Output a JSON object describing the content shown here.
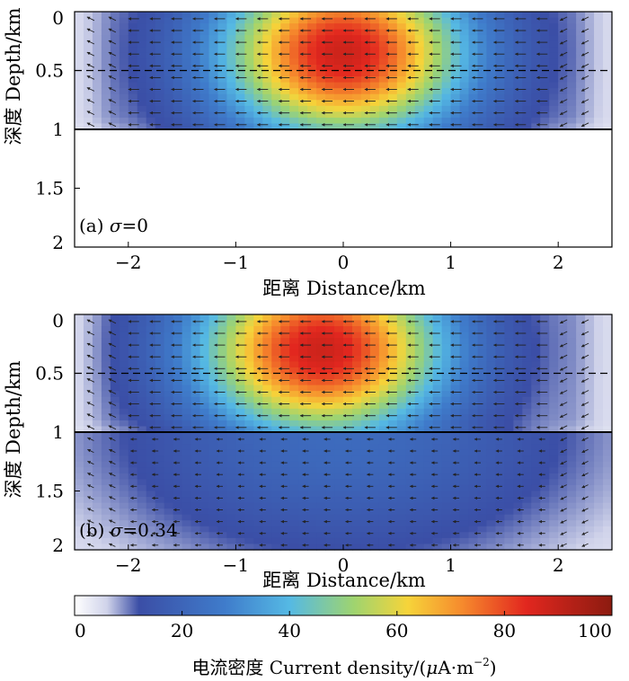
{
  "chart_data": [
    {
      "type": "heatmap",
      "panel": "a",
      "label": "(a) σ=0",
      "label_parts": {
        "prefix": "(a) ",
        "symbol": "σ",
        "value": "=0"
      },
      "xlabel": "距离 Distance/km",
      "ylabel": "深度 Depth/km",
      "xlim": [
        -2.5,
        2.5
      ],
      "ylim": [
        2,
        0
      ],
      "xticks": [
        -2,
        -1,
        0,
        1,
        2
      ],
      "yticks": [
        0,
        0.5,
        1,
        1.5,
        2
      ],
      "conductive_layer_depth_km": [
        0,
        1
      ],
      "dashed_line_depth_km": 0.5,
      "solid_line_depth_km": 1.0,
      "peak_current_density": 88,
      "peak_location_km": [
        0,
        0.35
      ],
      "lower_halfspace_density": null,
      "arrows": "horizontal current vectors, curving near edges"
    },
    {
      "type": "heatmap",
      "panel": "b",
      "label": "(b) σ=0.34",
      "label_parts": {
        "prefix": "(b) ",
        "symbol": "σ",
        "value": "=0.34"
      },
      "xlabel": "距离 Distance/km",
      "ylabel": "深度 Depth/km",
      "xlim": [
        -2.5,
        2.5
      ],
      "ylim": [
        2,
        0
      ],
      "xticks": [
        -2,
        -1,
        0,
        1,
        2
      ],
      "yticks": [
        0,
        0.5,
        1,
        1.5,
        2
      ],
      "conductive_layer_depth_km": [
        0,
        1
      ],
      "dashed_line_depth_km": 0.5,
      "solid_line_depth_km": 1.0,
      "peak_current_density": 88,
      "peak_location_km": [
        -0.2,
        0.3
      ],
      "lower_halfspace_density": 22,
      "arrows": "horizontal current vectors, curving near edges"
    }
  ],
  "colorbar": {
    "title": "电流密度 Current density/(μA·m⁻²)",
    "title_parts": {
      "main": "电流密度 Current density/(",
      "mu": "μ",
      "unit": "A·m",
      "exp": "−2",
      "close": ")"
    },
    "range": [
      0,
      100
    ],
    "ticks": [
      0,
      20,
      40,
      60,
      80,
      100
    ],
    "colors": [
      "#ffffff",
      "#3b4ea6",
      "#46b1e6",
      "#9fd46f",
      "#f6d43a",
      "#f68b2d",
      "#e2271f",
      "#8c1b10"
    ]
  }
}
